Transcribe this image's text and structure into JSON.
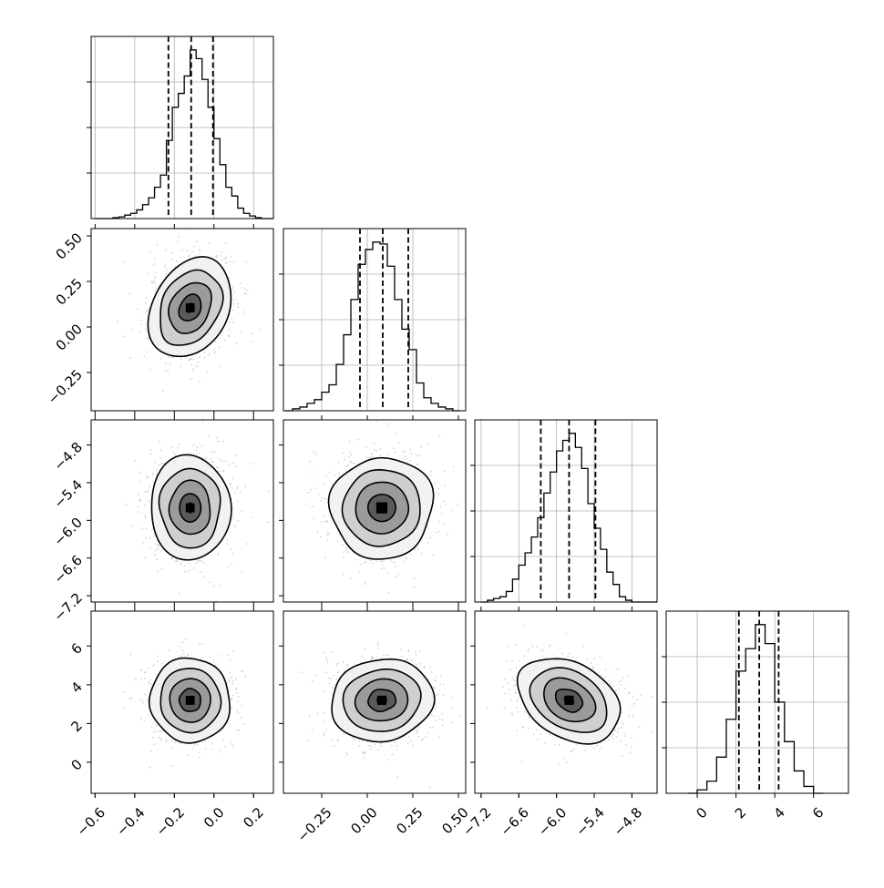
{
  "chart_data": {
    "type": "corner",
    "grid": true,
    "params": [
      {
        "range": [
          -0.62,
          0.3
        ],
        "quantiles": [
          -0.23,
          -0.115,
          -0.005
        ],
        "hist": {
          "edges": [
            -0.6,
            -0.57,
            -0.54,
            -0.51,
            -0.48,
            -0.45,
            -0.42,
            -0.39,
            -0.36,
            -0.33,
            -0.3,
            -0.27,
            -0.24,
            -0.21,
            -0.18,
            -0.15,
            -0.12,
            -0.09,
            -0.06,
            -0.03,
            0.0,
            0.03,
            0.06,
            0.09,
            0.12,
            0.15,
            0.18,
            0.21,
            0.24,
            0.27,
            0.3
          ],
          "counts": [
            0,
            0,
            0,
            0.5,
            1,
            2,
            3,
            5,
            8,
            12,
            18,
            25,
            45,
            64,
            72,
            82,
            97,
            92,
            80,
            64,
            46,
            31,
            18,
            13,
            6,
            3,
            1.5,
            0.5,
            0,
            0
          ]
        },
        "ticks": [
          -0.6,
          -0.4,
          -0.2,
          0.0,
          0.2
        ],
        "tick_labels": [
          "−0.6",
          "−0.4",
          "−0.2",
          "0.0",
          "0.2"
        ]
      },
      {
        "range": [
          -0.46,
          0.54
        ],
        "quantiles": [
          -0.04,
          0.085,
          0.225
        ],
        "hist": {
          "edges": [
            -0.45,
            -0.41,
            -0.37,
            -0.33,
            -0.29,
            -0.25,
            -0.21,
            -0.17,
            -0.13,
            -0.09,
            -0.05,
            -0.01,
            0.03,
            0.07,
            0.11,
            0.15,
            0.19,
            0.23,
            0.27,
            0.31,
            0.35,
            0.39,
            0.43,
            0.47,
            0.51
          ],
          "counts": [
            0,
            1,
            2,
            4,
            6,
            10,
            14,
            25,
            41,
            60,
            79,
            87,
            91,
            90,
            78,
            60,
            44,
            33,
            15,
            7,
            4,
            2,
            1,
            0
          ]
        },
        "ticks": [
          -0.25,
          0.0,
          0.25,
          0.5
        ],
        "tick_labels": [
          "−0.25",
          "0.00",
          "0.25",
          "0.50"
        ]
      },
      {
        "range": [
          -7.3,
          -4.4
        ],
        "quantiles": [
          -6.25,
          -5.8,
          -5.38
        ],
        "hist": {
          "edges": [
            -7.2,
            -7.1,
            -7.0,
            -6.9,
            -6.8,
            -6.7,
            -6.6,
            -6.5,
            -6.4,
            -6.3,
            -6.2,
            -6.1,
            -6.0,
            -5.9,
            -5.8,
            -5.7,
            -5.6,
            -5.5,
            -5.4,
            -5.3,
            -5.2,
            -5.1,
            -5.0,
            -4.9,
            -4.8,
            -4.7,
            -4.6,
            -4.5,
            -4.4
          ],
          "counts": [
            0,
            1,
            2,
            3,
            6,
            13,
            21,
            28,
            37,
            48,
            62,
            74,
            86,
            92,
            96,
            88,
            76,
            56,
            42,
            30,
            17,
            10,
            3,
            1,
            0,
            0,
            0,
            0
          ]
        },
        "ticks": [
          -7.2,
          -6.6,
          -6.0,
          -5.4,
          -4.8
        ],
        "tick_labels": [
          "−7.2",
          "−6.6",
          "−6.0",
          "−5.4",
          "−4.8"
        ]
      },
      {
        "range": [
          -1.6,
          7.8
        ],
        "quantiles": [
          2.15,
          3.2,
          4.2
        ],
        "hist": {
          "edges": [
            -0.5,
            0.0,
            0.5,
            1.0,
            1.5,
            2.0,
            2.5,
            3.0,
            3.5,
            4.0,
            4.5,
            5.0,
            5.5,
            6.0,
            6.5
          ],
          "counts": [
            0,
            2,
            7,
            21,
            43,
            71,
            84,
            98,
            87,
            53,
            30,
            13,
            4,
            0
          ]
        },
        "ticks": [
          0,
          2,
          4,
          6
        ],
        "tick_labels": [
          "0",
          "2",
          "4",
          "6"
        ]
      }
    ],
    "pairs": [
      {
        "row": 1,
        "col": 0,
        "center": [
          -0.12,
          0.105
        ],
        "sigma": [
          0.1,
          0.135
        ],
        "corr": 0.25
      },
      {
        "row": 2,
        "col": 0,
        "center": [
          -0.12,
          -5.8
        ],
        "sigma": [
          0.1,
          0.4
        ],
        "corr": 0.0
      },
      {
        "row": 2,
        "col": 1,
        "center": [
          0.08,
          -5.8
        ],
        "sigma": [
          0.135,
          0.4
        ],
        "corr": 0.0
      },
      {
        "row": 3,
        "col": 0,
        "center": [
          -0.12,
          3.2
        ],
        "sigma": [
          0.1,
          1.05
        ],
        "corr": 0.0
      },
      {
        "row": 3,
        "col": 1,
        "center": [
          0.08,
          3.2
        ],
        "sigma": [
          0.135,
          1.05
        ],
        "corr": 0.05
      },
      {
        "row": 3,
        "col": 2,
        "center": [
          -5.8,
          3.2
        ],
        "sigma": [
          0.4,
          1.05
        ],
        "corr": -0.3
      }
    ]
  }
}
